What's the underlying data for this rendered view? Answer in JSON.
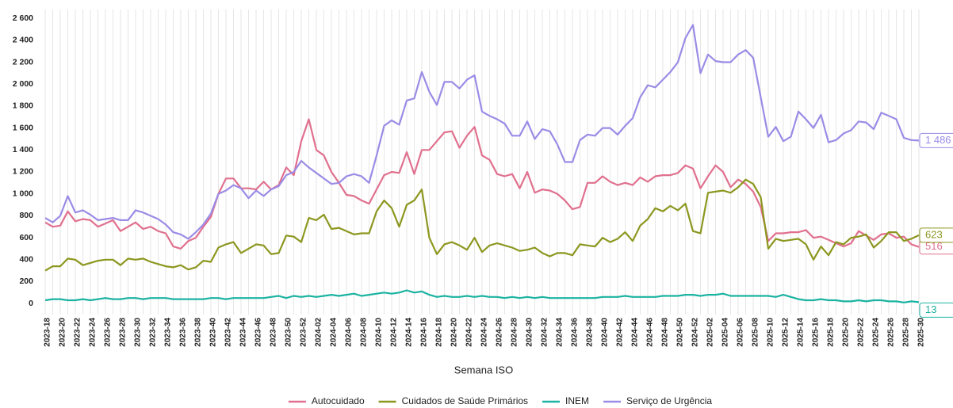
{
  "chart_data": {
    "type": "line",
    "x_label": "Semana ISO",
    "categories": [
      "2023-18",
      null,
      "2023-20",
      null,
      "2023-22",
      null,
      "2023-24",
      null,
      "2023-26",
      null,
      "2023-28",
      null,
      "2023-30",
      null,
      "2023-32",
      null,
      "2023-34",
      null,
      "2023-36",
      null,
      "2023-38",
      null,
      "2023-40",
      null,
      "2023-42",
      null,
      "2023-44",
      null,
      "2023-46",
      null,
      "2023-48",
      null,
      "2023-50",
      null,
      "2023-52",
      null,
      "2024-02",
      null,
      "2024-04",
      null,
      "2024-06",
      null,
      "2024-08",
      null,
      "2024-10",
      null,
      "2024-12",
      null,
      "2024-14",
      null,
      "2024-16",
      null,
      "2024-18",
      null,
      "2024-20",
      null,
      "2024-22",
      null,
      "2024-24",
      null,
      "2024-26",
      null,
      "2024-28",
      null,
      "2024-30",
      null,
      "2024-32",
      null,
      "2024-34",
      null,
      "2024-36",
      null,
      "2024-38",
      null,
      "2024-40",
      null,
      "2024-42",
      null,
      "2024-44",
      null,
      "2024-46",
      null,
      "2024-48",
      null,
      "2024-50",
      null,
      "2024-52",
      null,
      "2025-02",
      null,
      "2025-04",
      null,
      "2025-06",
      null,
      "2025-08",
      null,
      "2025-10",
      null,
      "2025-12",
      null,
      "2025-14",
      null,
      "2025-16",
      null,
      "2025-18",
      null,
      "2025-20",
      null,
      "2025-22",
      null,
      "2025-24",
      null,
      "2025-26",
      null,
      "2025-28",
      null,
      "2025-30"
    ],
    "series": [
      {
        "name": "Autocuidado",
        "color": "#e0708e",
        "end_label": "516",
        "values": [
          740,
          700,
          710,
          840,
          750,
          770,
          760,
          700,
          730,
          760,
          660,
          700,
          740,
          680,
          700,
          660,
          640,
          520,
          500,
          570,
          600,
          700,
          790,
          1000,
          1140,
          1140,
          1050,
          1050,
          1040,
          1110,
          1040,
          1080,
          1240,
          1170,
          1480,
          1680,
          1400,
          1350,
          1200,
          1100,
          990,
          980,
          940,
          910,
          1040,
          1170,
          1200,
          1190,
          1380,
          1180,
          1400,
          1400,
          1480,
          1560,
          1570,
          1420,
          1530,
          1610,
          1350,
          1310,
          1180,
          1160,
          1180,
          1050,
          1200,
          1010,
          1040,
          1030,
          1000,
          940,
          860,
          880,
          1100,
          1100,
          1160,
          1110,
          1080,
          1100,
          1080,
          1150,
          1110,
          1160,
          1170,
          1170,
          1190,
          1260,
          1230,
          1050,
          1160,
          1260,
          1200,
          1060,
          1130,
          1090,
          1020,
          880,
          570,
          640,
          640,
          650,
          650,
          670,
          600,
          610,
          580,
          550,
          520,
          550,
          660,
          620,
          580,
          630,
          640,
          600,
          610,
          540,
          516
        ]
      },
      {
        "name": "Cuidados de Saúde Primários",
        "color": "#8c971f",
        "end_label": "623",
        "values": [
          300,
          340,
          340,
          410,
          400,
          350,
          370,
          390,
          400,
          400,
          350,
          410,
          400,
          410,
          380,
          360,
          340,
          330,
          350,
          310,
          330,
          390,
          380,
          510,
          540,
          560,
          460,
          500,
          540,
          530,
          450,
          460,
          620,
          610,
          560,
          780,
          760,
          810,
          680,
          690,
          660,
          630,
          640,
          640,
          840,
          940,
          870,
          700,
          900,
          940,
          1040,
          600,
          450,
          540,
          560,
          530,
          490,
          600,
          470,
          530,
          550,
          530,
          510,
          480,
          490,
          510,
          460,
          430,
          460,
          460,
          440,
          540,
          530,
          520,
          600,
          560,
          590,
          650,
          570,
          710,
          770,
          870,
          840,
          890,
          850,
          910,
          660,
          640,
          1010,
          1020,
          1030,
          1010,
          1060,
          1130,
          1090,
          970,
          500,
          590,
          570,
          580,
          590,
          540,
          400,
          520,
          440,
          560,
          540,
          600,
          610,
          630,
          510,
          570,
          650,
          650,
          570,
          590,
          623
        ]
      },
      {
        "name": "INEM",
        "color": "#1bb3a1",
        "end_label": "13",
        "values": [
          30,
          40,
          40,
          30,
          30,
          40,
          30,
          40,
          50,
          40,
          40,
          50,
          50,
          40,
          50,
          50,
          50,
          40,
          40,
          40,
          40,
          40,
          50,
          50,
          40,
          50,
          50,
          50,
          50,
          50,
          60,
          70,
          50,
          70,
          60,
          70,
          60,
          70,
          80,
          70,
          80,
          90,
          70,
          80,
          90,
          100,
          90,
          100,
          120,
          100,
          110,
          80,
          60,
          70,
          60,
          60,
          70,
          60,
          70,
          60,
          60,
          50,
          60,
          50,
          60,
          50,
          60,
          50,
          50,
          50,
          50,
          50,
          50,
          50,
          60,
          60,
          60,
          70,
          60,
          60,
          60,
          60,
          70,
          70,
          70,
          80,
          80,
          70,
          80,
          80,
          90,
          70,
          70,
          70,
          70,
          70,
          70,
          60,
          80,
          60,
          40,
          30,
          30,
          40,
          30,
          30,
          20,
          20,
          30,
          20,
          30,
          30,
          20,
          20,
          10,
          20,
          13
        ]
      },
      {
        "name": "Serviço de Urgência",
        "color": "#9b8be6",
        "end_label": "1 486",
        "values": [
          780,
          740,
          800,
          980,
          830,
          850,
          810,
          760,
          770,
          780,
          760,
          760,
          850,
          830,
          800,
          770,
          720,
          650,
          630,
          590,
          650,
          720,
          820,
          1000,
          1030,
          1080,
          1050,
          960,
          1030,
          980,
          1040,
          1070,
          1170,
          1200,
          1300,
          1240,
          1190,
          1140,
          1090,
          1100,
          1160,
          1180,
          1160,
          1100,
          1350,
          1620,
          1670,
          1630,
          1850,
          1870,
          2110,
          1930,
          1810,
          2020,
          2020,
          1960,
          2040,
          2080,
          1750,
          1710,
          1680,
          1640,
          1530,
          1530,
          1660,
          1500,
          1590,
          1570,
          1450,
          1290,
          1290,
          1490,
          1540,
          1530,
          1600,
          1600,
          1540,
          1620,
          1690,
          1880,
          1990,
          1970,
          2040,
          2110,
          2200,
          2420,
          2540,
          2100,
          2270,
          2210,
          2200,
          2200,
          2270,
          2310,
          2240,
          1880,
          1520,
          1610,
          1480,
          1520,
          1750,
          1680,
          1600,
          1720,
          1470,
          1490,
          1550,
          1580,
          1660,
          1650,
          1590,
          1740,
          1710,
          1680,
          1510,
          1490,
          1486
        ]
      }
    ],
    "ylim": [
      -100,
      2680
    ],
    "yticks": [
      0,
      200,
      400,
      600,
      800,
      {
        "value": 1000,
        "label": "1 000"
      },
      {
        "value": 1200,
        "label": "1 200"
      },
      {
        "value": 1400,
        "label": "1 400"
      },
      {
        "value": 1600,
        "label": "1 600"
      },
      {
        "value": 1800,
        "label": "1 800"
      },
      {
        "value": 2000,
        "label": "2 000"
      },
      {
        "value": 2200,
        "label": "2 200"
      },
      {
        "value": 2400,
        "label": "2 400"
      },
      {
        "value": 2600,
        "label": "2 600"
      }
    ],
    "grid": true,
    "legend": "bottom"
  }
}
